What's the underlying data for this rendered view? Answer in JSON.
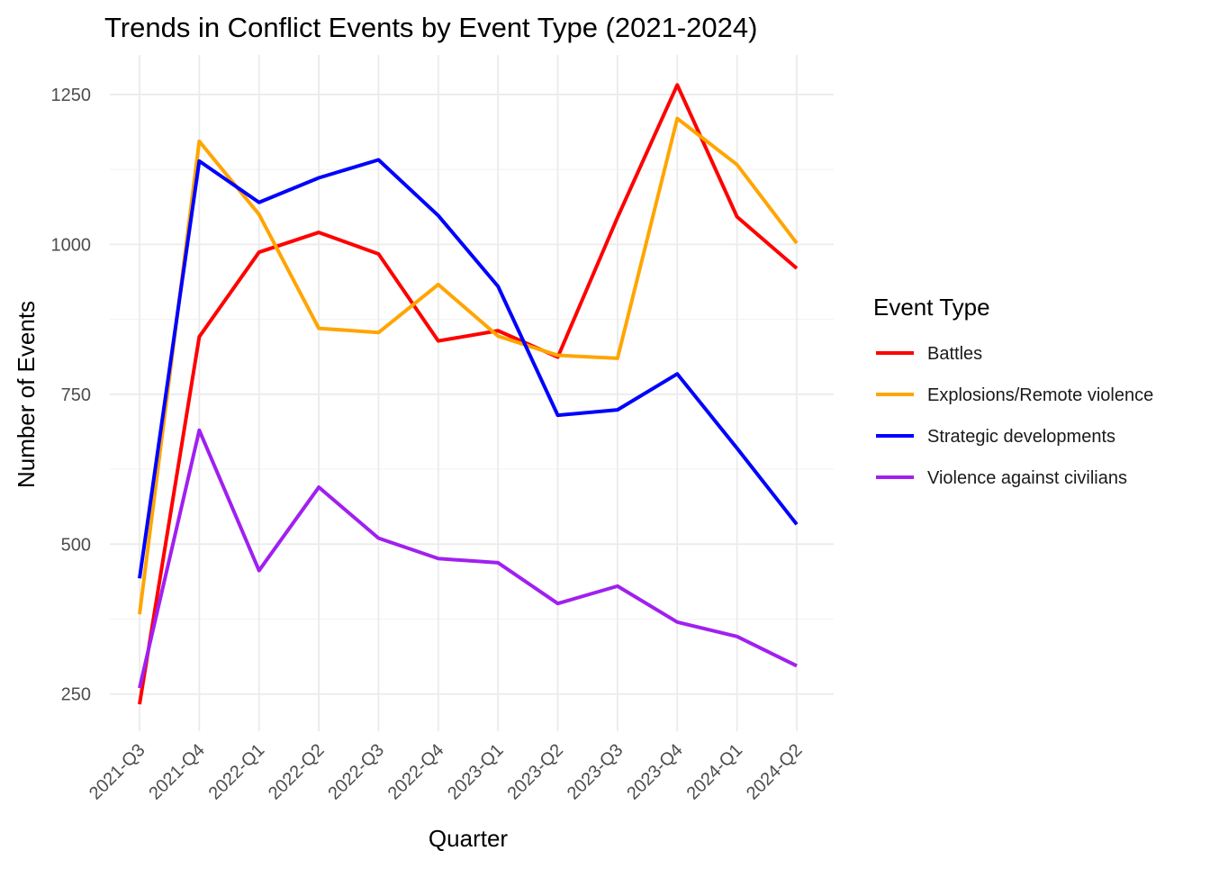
{
  "chart_data": {
    "type": "line",
    "title": "Trends in Conflict Events by Event Type (2021-2024)",
    "xlabel": "Quarter",
    "ylabel": "Number of Events",
    "categories": [
      "2021-Q3",
      "2021-Q4",
      "2022-Q1",
      "2022-Q2",
      "2022-Q3",
      "2022-Q4",
      "2023-Q1",
      "2023-Q2",
      "2023-Q3",
      "2023-Q4",
      "2024-Q1",
      "2024-Q2"
    ],
    "y_ticks": [
      250,
      500,
      750,
      1000,
      1250
    ],
    "ylim": [
      188,
      1316
    ],
    "grid": true,
    "legend": {
      "title": "Event Type",
      "position": "right"
    },
    "series": [
      {
        "name": "Battles",
        "color": "#FF0000",
        "values": [
          233,
          846,
          987,
          1020,
          984,
          839,
          856,
          812,
          1045,
          1266,
          1046,
          960
        ]
      },
      {
        "name": "Explosions/Remote violence",
        "color": "#FFA500",
        "values": [
          383,
          1172,
          1050,
          860,
          853,
          933,
          847,
          815,
          810,
          1210,
          1133,
          1002
        ]
      },
      {
        "name": "Strategic developments",
        "color": "#0000FF",
        "values": [
          443,
          1139,
          1070,
          1111,
          1141,
          1048,
          930,
          715,
          724,
          784,
          660,
          533
        ]
      },
      {
        "name": "Violence against civilians",
        "color": "#A020F0",
        "values": [
          260,
          690,
          456,
          595,
          510,
          476,
          469,
          401,
          430,
          370,
          346,
          297
        ]
      }
    ]
  }
}
